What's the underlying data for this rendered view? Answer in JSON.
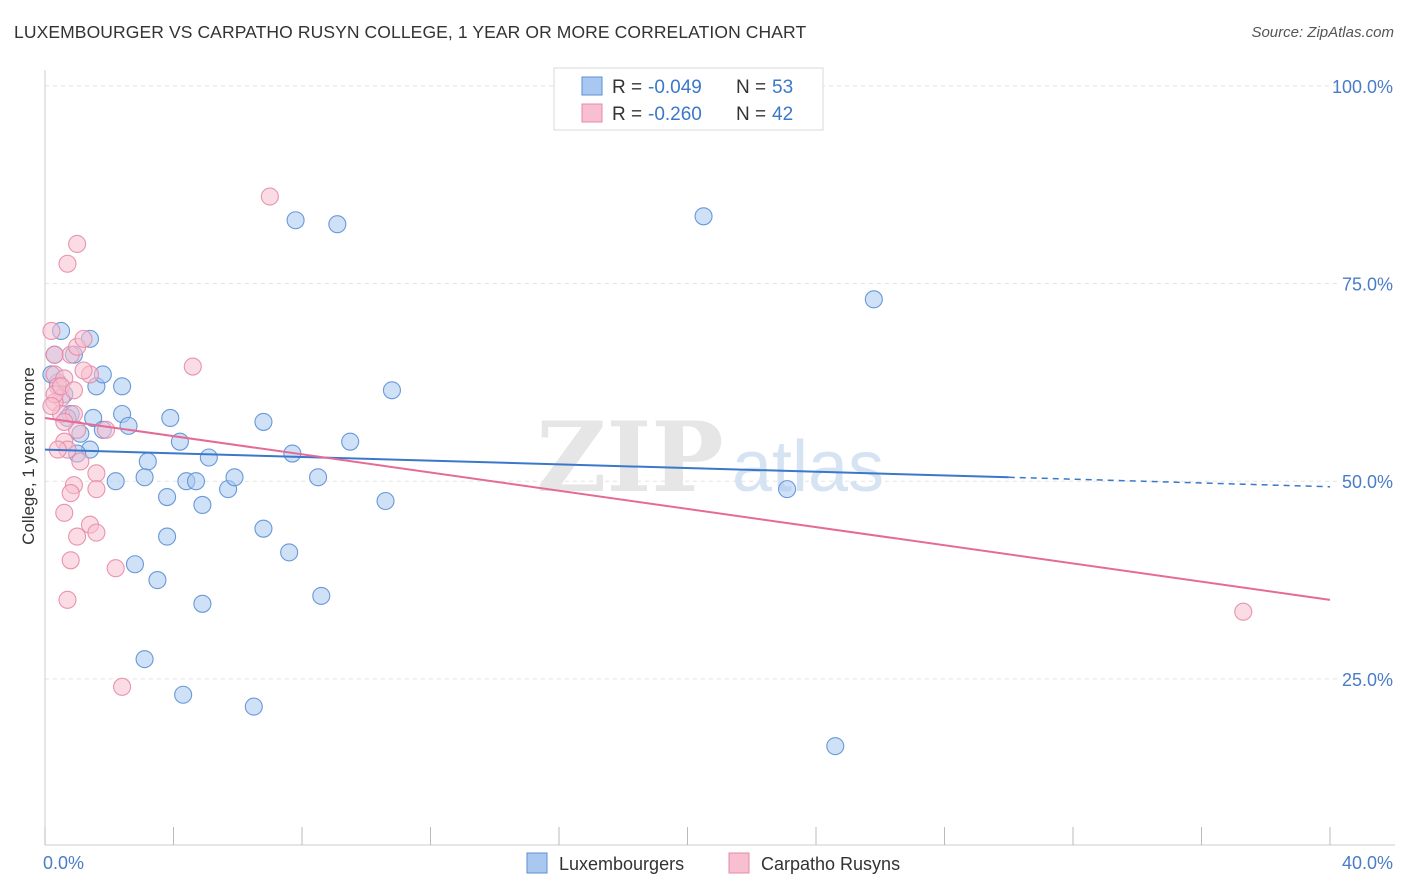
{
  "title": "LUXEMBOURGER VS CARPATHO RUSYN COLLEGE, 1 YEAR OR MORE CORRELATION CHART",
  "source": "Source: ZipAtlas.com",
  "colors": {
    "blue_fill": "#a8c8f0",
    "blue_stroke": "#5b8fd4",
    "blue_line": "#3a78c9",
    "pink_fill": "#f7bfd0",
    "pink_stroke": "#e68aa8",
    "pink_line": "#e56b97",
    "tick_text": "#4a7cc7",
    "grid": "#e4e4e4"
  },
  "legend": {
    "rows": [
      {
        "r_label": "R = ",
        "r_value": "-0.049",
        "n_label": "N = ",
        "n_value": "53"
      },
      {
        "r_label": "R = ",
        "r_value": "-0.260",
        "n_label": "N = ",
        "n_value": "42"
      }
    ]
  },
  "watermark": {
    "zip": "ZIP",
    "atlas": "atlas"
  },
  "chart_data": {
    "type": "scatter",
    "title": "LUXEMBOURGER VS CARPATHO RUSYN COLLEGE, 1 YEAR OR MORE CORRELATION CHART",
    "xlabel": "",
    "ylabel": "College, 1 year or more",
    "xlim": [
      0,
      40
    ],
    "ylim": [
      4,
      102
    ],
    "x_tick_labels": [
      "0.0%",
      "40.0%"
    ],
    "y_ticks": [
      25,
      50,
      75,
      100
    ],
    "y_tick_labels": [
      "25.0%",
      "50.0%",
      "75.0%",
      "100.0%"
    ],
    "grid": true,
    "legend_position": "top-center",
    "series": [
      {
        "name": "Luxembourgers",
        "r": -0.049,
        "n": 53,
        "trend": {
          "x0": 0,
          "y0": 54.0,
          "x1": 30.0,
          "y1": 50.5,
          "dash_to_x": 40,
          "dash_to_y": 49.3
        },
        "points": [
          [
            0.3,
            66.0
          ],
          [
            0.5,
            69.0
          ],
          [
            0.4,
            62.5
          ],
          [
            0.6,
            61.0
          ],
          [
            0.8,
            58.5
          ],
          [
            0.7,
            58.0
          ],
          [
            0.9,
            66.0
          ],
          [
            1.4,
            68.0
          ],
          [
            1.6,
            62.0
          ],
          [
            1.1,
            56.0
          ],
          [
            1.5,
            58.0
          ],
          [
            1.8,
            56.5
          ],
          [
            1.4,
            54.0
          ],
          [
            1.0,
            53.5
          ],
          [
            2.4,
            58.5
          ],
          [
            2.4,
            62.0
          ],
          [
            2.6,
            57.0
          ],
          [
            2.2,
            50.0
          ],
          [
            3.2,
            52.5
          ],
          [
            3.1,
            50.5
          ],
          [
            3.9,
            58.0
          ],
          [
            4.2,
            55.0
          ],
          [
            3.8,
            48.0
          ],
          [
            4.4,
            50.0
          ],
          [
            4.7,
            50.0
          ],
          [
            4.9,
            47.0
          ],
          [
            5.1,
            53.0
          ],
          [
            5.7,
            49.0
          ],
          [
            5.9,
            50.5
          ],
          [
            6.8,
            57.5
          ],
          [
            7.7,
            53.5
          ],
          [
            8.5,
            50.5
          ],
          [
            9.5,
            55.0
          ],
          [
            10.6,
            47.5
          ],
          [
            10.8,
            61.5
          ],
          [
            3.8,
            43.0
          ],
          [
            2.8,
            39.5
          ],
          [
            3.5,
            37.5
          ],
          [
            4.9,
            34.5
          ],
          [
            6.8,
            44.0
          ],
          [
            7.6,
            41.0
          ],
          [
            8.6,
            35.5
          ],
          [
            3.1,
            27.5
          ],
          [
            4.3,
            23.0
          ],
          [
            6.5,
            21.5
          ],
          [
            7.8,
            83.0
          ],
          [
            9.1,
            82.5
          ],
          [
            20.5,
            83.5
          ],
          [
            24.6,
            16.5
          ],
          [
            25.8,
            73.0
          ],
          [
            23.1,
            49.0
          ],
          [
            0.2,
            63.5
          ],
          [
            1.8,
            63.5
          ]
        ]
      },
      {
        "name": "Carpatho Rusyns",
        "r": -0.26,
        "n": 42,
        "trend": {
          "x0": 0,
          "y0": 58.0,
          "x1": 40,
          "y1": 35.0
        },
        "points": [
          [
            0.2,
            69.0
          ],
          [
            0.3,
            66.0
          ],
          [
            0.3,
            63.5
          ],
          [
            0.4,
            62.0
          ],
          [
            0.5,
            60.5
          ],
          [
            0.6,
            63.0
          ],
          [
            0.3,
            60.0
          ],
          [
            0.8,
            66.0
          ],
          [
            1.0,
            67.0
          ],
          [
            1.2,
            68.0
          ],
          [
            1.4,
            63.5
          ],
          [
            0.5,
            58.5
          ],
          [
            0.9,
            58.5
          ],
          [
            1.0,
            56.5
          ],
          [
            0.6,
            55.0
          ],
          [
            0.7,
            54.0
          ],
          [
            0.4,
            54.0
          ],
          [
            1.1,
            52.5
          ],
          [
            1.6,
            51.0
          ],
          [
            0.9,
            49.5
          ],
          [
            0.8,
            48.5
          ],
          [
            1.6,
            49.0
          ],
          [
            0.6,
            46.0
          ],
          [
            1.4,
            44.5
          ],
          [
            1.0,
            43.0
          ],
          [
            1.6,
            43.5
          ],
          [
            0.8,
            40.0
          ],
          [
            2.2,
            39.0
          ],
          [
            0.7,
            35.0
          ],
          [
            0.7,
            77.5
          ],
          [
            1.0,
            80.0
          ],
          [
            7.0,
            86.0
          ],
          [
            4.6,
            64.5
          ],
          [
            2.4,
            24.0
          ],
          [
            37.3,
            33.5
          ],
          [
            1.9,
            56.5
          ],
          [
            0.3,
            61.0
          ],
          [
            0.5,
            62.0
          ],
          [
            1.2,
            64.0
          ],
          [
            0.2,
            59.5
          ],
          [
            0.9,
            61.5
          ],
          [
            0.6,
            57.5
          ]
        ]
      }
    ]
  }
}
